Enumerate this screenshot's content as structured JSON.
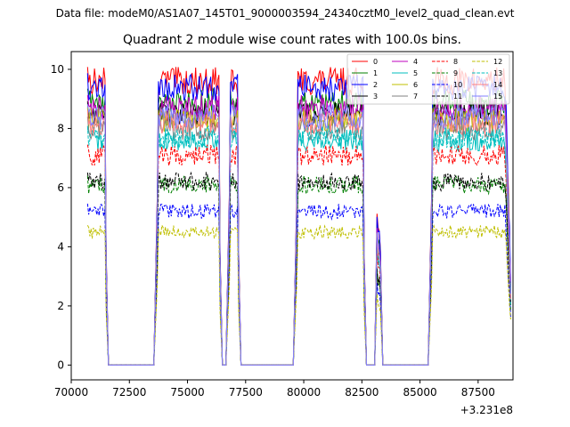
{
  "chart_data": {
    "type": "line",
    "suptitle": "Data file: modeM0/AS1A07_145T01_9000003594_24340cztM0_level2_quad_clean.evt",
    "title": "Quadrant 2 module wise count rates with 100.0s bins.",
    "xlabel": "",
    "ylabel": "",
    "x_offset_label": "+3.231e8",
    "xlim": [
      70000,
      89000
    ],
    "ylim": [
      -0.5,
      10.6
    ],
    "xticks": [
      70000,
      72500,
      75000,
      77500,
      80000,
      82500,
      85000,
      87500
    ],
    "xtick_labels": [
      "70000",
      "72500",
      "75000",
      "77500",
      "80000",
      "82500",
      "85000",
      "87500"
    ],
    "yticks": [
      0,
      2,
      4,
      6,
      8,
      10
    ],
    "ytick_labels": [
      "0",
      "2",
      "4",
      "6",
      "8",
      "10"
    ],
    "legend_position": "top-right",
    "time_bins": {
      "start": 70700,
      "end": 88900,
      "step": 100
    },
    "segments": [
      {
        "from": 70700,
        "to": 71450,
        "state": "on"
      },
      {
        "from": 71500,
        "to": 71600,
        "state": "ramp-down"
      },
      {
        "from": 71650,
        "to": 73550,
        "state": "zero"
      },
      {
        "from": 73600,
        "to": 73700,
        "state": "ramp-up"
      },
      {
        "from": 73750,
        "to": 76350,
        "state": "on"
      },
      {
        "from": 76400,
        "to": 76500,
        "state": "ramp-down"
      },
      {
        "from": 76550,
        "to": 76650,
        "state": "zero"
      },
      {
        "from": 76700,
        "to": 76800,
        "state": "ramp-up"
      },
      {
        "from": 76850,
        "to": 77150,
        "state": "on"
      },
      {
        "from": 77200,
        "to": 77300,
        "state": "ramp-down"
      },
      {
        "from": 77350,
        "to": 79550,
        "state": "zero"
      },
      {
        "from": 79600,
        "to": 79700,
        "state": "ramp-up"
      },
      {
        "from": 79750,
        "to": 82550,
        "state": "on"
      },
      {
        "from": 82600,
        "to": 82700,
        "state": "ramp-down"
      },
      {
        "from": 82750,
        "to": 83050,
        "state": "zero"
      },
      {
        "from": 83100,
        "to": 83150,
        "state": "ramp-up"
      },
      {
        "from": 83200,
        "to": 83250,
        "state": "spike"
      },
      {
        "from": 83300,
        "to": 83400,
        "state": "ramp-down"
      },
      {
        "from": 83450,
        "to": 85350,
        "state": "zero"
      },
      {
        "from": 85400,
        "to": 85500,
        "state": "ramp-up"
      },
      {
        "from": 85550,
        "to": 88650,
        "state": "on"
      },
      {
        "from": 88700,
        "to": 88900,
        "state": "tail"
      }
    ],
    "series": [
      {
        "name": "0",
        "color": "#ff0000",
        "dash": "solid",
        "level": 9.6
      },
      {
        "name": "1",
        "color": "#008000",
        "dash": "solid",
        "level": 8.9
      },
      {
        "name": "2",
        "color": "#0000ff",
        "dash": "solid",
        "level": 9.4
      },
      {
        "name": "3",
        "color": "#000000",
        "dash": "solid",
        "level": 8.5
      },
      {
        "name": "4",
        "color": "#bf00bf",
        "dash": "solid",
        "level": 8.7
      },
      {
        "name": "5",
        "color": "#00bfbf",
        "dash": "solid",
        "level": 7.6
      },
      {
        "name": "6",
        "color": "#bfbf00",
        "dash": "solid",
        "level": 8.3
      },
      {
        "name": "7",
        "color": "#808080",
        "dash": "solid",
        "level": 8.0
      },
      {
        "name": "8",
        "color": "#ff0000",
        "dash": "dashed",
        "level": 7.1
      },
      {
        "name": "9",
        "color": "#008000",
        "dash": "dashed",
        "level": 6.1
      },
      {
        "name": "10",
        "color": "#0000ff",
        "dash": "dashed",
        "level": 5.2
      },
      {
        "name": "11",
        "color": "#000000",
        "dash": "dashed",
        "level": 6.2
      },
      {
        "name": "12",
        "color": "#bfbf00",
        "dash": "dashed",
        "level": 4.5
      },
      {
        "name": "13",
        "color": "#00bfbf",
        "dash": "dashed",
        "level": 7.7
      },
      {
        "name": "14",
        "color": "#ff8080",
        "dash": "solid",
        "level": 8.2
      },
      {
        "name": "15",
        "color": "#8080ff",
        "dash": "solid",
        "level": 8.4
      }
    ]
  }
}
